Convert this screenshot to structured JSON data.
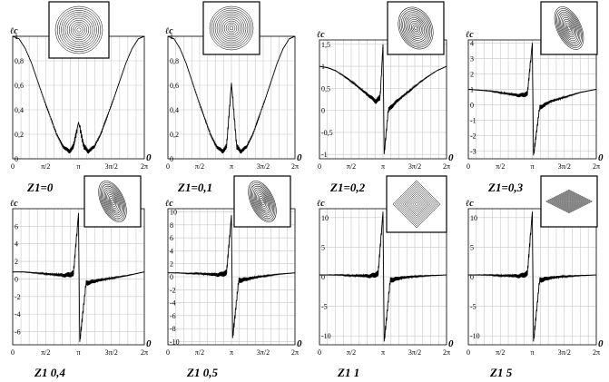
{
  "chart_data": [
    {
      "type": "line",
      "ylabel": "ℓc",
      "caption": "Z1=0",
      "zero_label": "0",
      "ylim": [
        0,
        1
      ],
      "yticks": [
        "0",
        "0,2",
        "0,4",
        "0,6",
        "0,8",
        "1"
      ],
      "ytick_values": [
        0,
        0.2,
        0.4,
        0.6,
        0.8,
        1
      ],
      "xticks": [
        "0",
        "π/2",
        "π",
        "3π/2",
        "2π"
      ],
      "series": [
        {
          "x": [
            0,
            0.3,
            0.6,
            0.9,
            1.2,
            1.5,
            1.8,
            2.1,
            2.4,
            2.7,
            2.9,
            3.1416,
            3.4,
            3.6,
            3.9,
            4.2,
            4.5,
            4.8,
            5.1,
            5.4,
            5.7,
            6.0,
            6.2832
          ],
          "values": [
            1,
            0.98,
            0.9,
            0.78,
            0.63,
            0.48,
            0.34,
            0.2,
            0.1,
            0.06,
            0.1,
            0.3,
            0.1,
            0.06,
            0.1,
            0.2,
            0.34,
            0.48,
            0.63,
            0.78,
            0.9,
            0.98,
            1
          ]
        }
      ],
      "inset": "concentric-circles"
    },
    {
      "type": "line",
      "ylabel": "ℓc",
      "caption": "Z1=0,1",
      "zero_label": "0",
      "ylim": [
        0,
        1
      ],
      "yticks": [
        "0",
        "0,2",
        "0,4",
        "0,6",
        "0,8",
        "1"
      ],
      "ytick_values": [
        0,
        0.2,
        0.4,
        0.6,
        0.8,
        1
      ],
      "xticks": [
        "0",
        "π/2",
        "π",
        "3π/2",
        "2π"
      ],
      "series": [
        {
          "x": [
            0,
            0.3,
            0.6,
            0.9,
            1.2,
            1.5,
            1.8,
            2.1,
            2.4,
            2.7,
            2.9,
            3.1416,
            3.4,
            3.6,
            3.9,
            4.2,
            4.5,
            4.8,
            5.1,
            5.4,
            5.7,
            6.0,
            6.2832
          ],
          "values": [
            1,
            0.98,
            0.9,
            0.78,
            0.63,
            0.48,
            0.34,
            0.2,
            0.1,
            0.06,
            0.1,
            0.62,
            0.1,
            0.06,
            0.1,
            0.2,
            0.34,
            0.48,
            0.63,
            0.78,
            0.9,
            0.98,
            1
          ]
        }
      ],
      "inset": "concentric-circles"
    },
    {
      "type": "line",
      "ylabel": "ℓc",
      "caption": "Z1=0,2",
      "zero_label": "0",
      "ylim": [
        -1.1,
        1.6
      ],
      "yticks": [
        "-1",
        "-0,5",
        "0",
        "0,5",
        "1",
        "1,5"
      ],
      "ytick_values": [
        -1,
        -0.5,
        0,
        0.5,
        1,
        1.5
      ],
      "xticks": [
        "0",
        "π/2",
        "π",
        "3π/2",
        "2π"
      ],
      "series": [
        {
          "x": [
            0,
            0.4,
            0.8,
            1.2,
            1.6,
            2.0,
            2.4,
            2.8,
            3.0,
            3.1416,
            3.2,
            3.4,
            3.8,
            4.2,
            4.6,
            5.0,
            5.4,
            5.8,
            6.2832
          ],
          "values": [
            1,
            0.97,
            0.9,
            0.78,
            0.65,
            0.5,
            0.35,
            0.2,
            0.3,
            1.5,
            -1.0,
            0.0,
            0.2,
            0.35,
            0.5,
            0.65,
            0.78,
            0.9,
            1
          ]
        }
      ],
      "inset": "tilted-ellipses"
    },
    {
      "type": "line",
      "ylabel": "ℓc",
      "caption": "Z1=0,3",
      "zero_label": "0",
      "ylim": [
        -3.5,
        4.2
      ],
      "yticks": [
        "-3",
        "-2",
        "-1",
        "0",
        "1",
        "2",
        "3",
        "4"
      ],
      "ytick_values": [
        -3,
        -2,
        -1,
        0,
        1,
        2,
        3,
        4
      ],
      "xticks": [
        "0",
        "π/2",
        "π",
        "3π/2",
        "2π"
      ],
      "series": [
        {
          "x": [
            0,
            0.5,
            1.0,
            1.5,
            2.0,
            2.5,
            2.9,
            3.1416,
            3.2,
            3.5,
            4.0,
            4.5,
            5.0,
            5.5,
            6.2832
          ],
          "values": [
            1,
            0.95,
            0.9,
            0.8,
            0.7,
            0.6,
            0.7,
            4.0,
            -3.3,
            -0.2,
            0.2,
            0.4,
            0.6,
            0.8,
            1
          ]
        }
      ],
      "inset": "pinched-loops"
    },
    {
      "type": "line",
      "ylabel": "ℓc",
      "caption": "Z1   0,4",
      "zero_label": "0",
      "ylim": [
        -7.5,
        8
      ],
      "yticks": [
        "-6",
        "-4",
        "-2",
        "0",
        "2",
        "4",
        "6"
      ],
      "ytick_values": [
        -6,
        -4,
        -2,
        0,
        2,
        4,
        6
      ],
      "xticks": [
        "0",
        "π/2",
        "π",
        "3π/2",
        "2π"
      ],
      "series": [
        {
          "x": [
            0,
            0.5,
            1.0,
            1.5,
            2.0,
            2.5,
            2.9,
            3.1416,
            3.2,
            3.5,
            4.0,
            4.5,
            5.0,
            5.5,
            6.2832
          ],
          "values": [
            0.8,
            0.8,
            0.7,
            0.6,
            0.5,
            0.4,
            0.6,
            7.5,
            -7.2,
            -0.5,
            -0.2,
            0.0,
            0.2,
            0.4,
            0.8
          ]
        }
      ],
      "inset": "lens-loops"
    },
    {
      "type": "line",
      "ylabel": "ℓc",
      "caption": "Z1   0,5",
      "zero_label": "0",
      "ylim": [
        -10.5,
        10.5
      ],
      "yticks": [
        "-10",
        "-8",
        "-6",
        "-4",
        "-2",
        "0",
        "2",
        "4",
        "6",
        "8",
        "10"
      ],
      "ytick_values": [
        -10,
        -8,
        -6,
        -4,
        -2,
        0,
        2,
        4,
        6,
        8,
        10
      ],
      "xticks": [
        "0",
        "π/2",
        "π",
        "3π/2",
        "2π"
      ],
      "series": [
        {
          "x": [
            0,
            0.5,
            1.0,
            1.5,
            2.0,
            2.5,
            2.9,
            3.1416,
            3.2,
            3.5,
            4.0,
            4.5,
            5.0,
            5.5,
            6.2832
          ],
          "values": [
            0.6,
            0.6,
            0.5,
            0.5,
            0.4,
            0.3,
            0.6,
            9.5,
            -9.5,
            -0.6,
            -0.3,
            0.0,
            0.2,
            0.4,
            0.6
          ]
        }
      ],
      "inset": "lens-loops"
    },
    {
      "type": "line",
      "ylabel": "ℓc",
      "caption": "Z1   1",
      "zero_label": "0",
      "ylim": [
        -11.5,
        11.5
      ],
      "yticks": [
        "-10",
        "-5",
        "0",
        "5",
        "10"
      ],
      "ytick_values": [
        -10,
        -5,
        0,
        5,
        10
      ],
      "xticks": [
        "0",
        "π/2",
        "π",
        "3π/2",
        "2π"
      ],
      "series": [
        {
          "x": [
            0,
            0.5,
            1.0,
            1.5,
            2.0,
            2.5,
            2.9,
            3.1416,
            3.2,
            3.5,
            4.0,
            4.5,
            5.0,
            5.5,
            6.2832
          ],
          "values": [
            0.3,
            0.3,
            0.3,
            0.2,
            0.2,
            0.1,
            0.5,
            11.0,
            -11.0,
            -0.6,
            -0.2,
            0.0,
            0.1,
            0.2,
            0.3
          ]
        }
      ],
      "inset": "diamond"
    },
    {
      "type": "line",
      "ylabel": "ℓc",
      "caption": "Z1   5",
      "zero_label": "0",
      "ylim": [
        -11.5,
        11.5
      ],
      "yticks": [
        "-10",
        "-5",
        "0",
        "5",
        "10"
      ],
      "ytick_values": [
        -10,
        -5,
        0,
        5,
        10
      ],
      "xticks": [
        "0",
        "π/2",
        "π",
        "3π/2",
        "2π"
      ],
      "series": [
        {
          "x": [
            0,
            0.5,
            1.0,
            1.5,
            2.0,
            2.5,
            2.9,
            3.1416,
            3.2,
            3.5,
            4.0,
            4.5,
            5.0,
            5.5,
            6.2832
          ],
          "values": [
            0.3,
            0.3,
            0.3,
            0.2,
            0.2,
            0.1,
            0.5,
            11.0,
            -11.0,
            -0.6,
            -0.2,
            0.0,
            0.1,
            0.2,
            0.3
          ]
        }
      ],
      "inset": "flat-diamond"
    }
  ]
}
